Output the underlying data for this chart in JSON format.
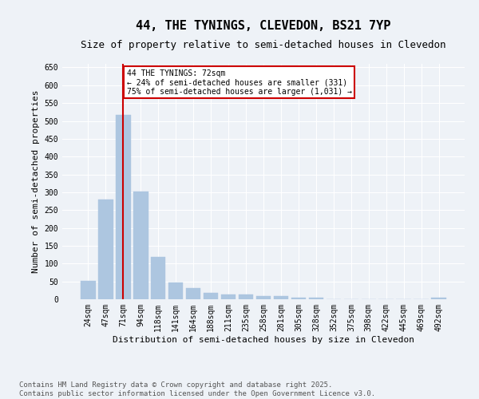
{
  "title": "44, THE TYNINGS, CLEVEDON, BS21 7YP",
  "subtitle": "Size of property relative to semi-detached houses in Clevedon",
  "xlabel": "Distribution of semi-detached houses by size in Clevedon",
  "ylabel": "Number of semi-detached properties",
  "categories": [
    "24sqm",
    "47sqm",
    "71sqm",
    "94sqm",
    "118sqm",
    "141sqm",
    "164sqm",
    "188sqm",
    "211sqm",
    "235sqm",
    "258sqm",
    "281sqm",
    "305sqm",
    "328sqm",
    "352sqm",
    "375sqm",
    "398sqm",
    "422sqm",
    "445sqm",
    "469sqm",
    "492sqm"
  ],
  "values": [
    52,
    280,
    516,
    302,
    118,
    46,
    32,
    18,
    14,
    14,
    8,
    8,
    5,
    4,
    0,
    0,
    0,
    0,
    0,
    0,
    4
  ],
  "bar_color": "#adc6e0",
  "bar_edge_color": "#adc6e0",
  "highlight_bar_index": 2,
  "highlight_line_color": "#cc0000",
  "annotation_text": "44 THE TYNINGS: 72sqm\n← 24% of semi-detached houses are smaller (331)\n75% of semi-detached houses are larger (1,031) →",
  "annotation_box_color": "#cc0000",
  "ylim": [
    0,
    660
  ],
  "yticks": [
    0,
    50,
    100,
    150,
    200,
    250,
    300,
    350,
    400,
    450,
    500,
    550,
    600,
    650
  ],
  "background_color": "#eef2f7",
  "plot_background": "#eef2f7",
  "grid_color": "#ffffff",
  "footer_text": "Contains HM Land Registry data © Crown copyright and database right 2025.\nContains public sector information licensed under the Open Government Licence v3.0.",
  "title_fontsize": 11,
  "subtitle_fontsize": 9,
  "axis_label_fontsize": 8,
  "tick_fontsize": 7,
  "footer_fontsize": 6.5
}
